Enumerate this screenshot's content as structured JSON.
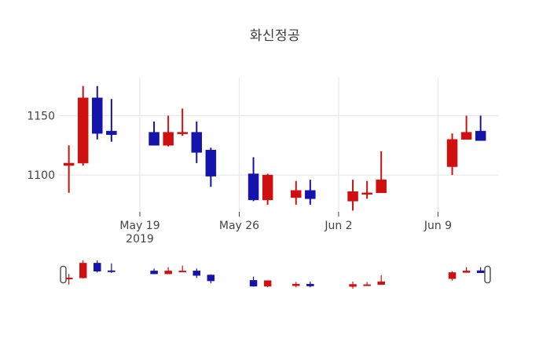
{
  "chart_data": {
    "type": "candlestick",
    "title": "화신정공",
    "xlabel": "",
    "ylabel": "",
    "grid": true,
    "legend": "none",
    "increasing_color": "#d01010",
    "decreasing_color": "#1414ad",
    "grid_color": "#e9e9e9",
    "tick_color": "#444444",
    "y_ticks": [
      1150,
      1100
    ],
    "y_range": [
      1069,
      1182
    ],
    "x_tick_labels": [
      {
        "label": "May 19",
        "sub": "2019",
        "date": "2019-05-19"
      },
      {
        "label": "May 26",
        "sub": "",
        "date": "2019-05-26"
      },
      {
        "label": "Jun 2",
        "sub": "",
        "date": "2019-06-02"
      },
      {
        "label": "Jun 9",
        "sub": "",
        "date": "2019-06-09"
      }
    ],
    "series": [
      {
        "date": "2019-05-14",
        "open": 1108,
        "high": 1125,
        "low": 1085,
        "close": 1110
      },
      {
        "date": "2019-05-15",
        "open": 1110,
        "high": 1175,
        "low": 1108,
        "close": 1165
      },
      {
        "date": "2019-05-16",
        "open": 1165,
        "high": 1175,
        "low": 1130,
        "close": 1135
      },
      {
        "date": "2019-05-17",
        "open": 1137,
        "high": 1164,
        "low": 1128,
        "close": 1134
      },
      {
        "date": "2019-05-20",
        "open": 1136,
        "high": 1145,
        "low": 1125,
        "close": 1125
      },
      {
        "date": "2019-05-21",
        "open": 1125,
        "high": 1150,
        "low": 1124,
        "close": 1136
      },
      {
        "date": "2019-05-22",
        "open": 1135,
        "high": 1156,
        "low": 1133,
        "close": 1136
      },
      {
        "date": "2019-05-23",
        "open": 1136,
        "high": 1145,
        "low": 1110,
        "close": 1119
      },
      {
        "date": "2019-05-24",
        "open": 1121,
        "high": 1123,
        "low": 1090,
        "close": 1099
      },
      {
        "date": "2019-05-27",
        "open": 1101,
        "high": 1115,
        "low": 1078,
        "close": 1079
      },
      {
        "date": "2019-05-28",
        "open": 1079,
        "high": 1101,
        "low": 1075,
        "close": 1100
      },
      {
        "date": "2019-05-30",
        "open": 1081,
        "high": 1095,
        "low": 1075,
        "close": 1087
      },
      {
        "date": "2019-05-31",
        "open": 1087,
        "high": 1096,
        "low": 1075,
        "close": 1080
      },
      {
        "date": "2019-06-03",
        "open": 1078,
        "high": 1096,
        "low": 1070,
        "close": 1086
      },
      {
        "date": "2019-06-04",
        "open": 1084,
        "high": 1095,
        "low": 1080,
        "close": 1085
      },
      {
        "date": "2019-06-05",
        "open": 1085,
        "high": 1120,
        "low": 1085,
        "close": 1096
      },
      {
        "date": "2019-06-10",
        "open": 1107,
        "high": 1135,
        "low": 1100,
        "close": 1130
      },
      {
        "date": "2019-06-11",
        "open": 1130,
        "high": 1150,
        "low": 1130,
        "close": 1136
      },
      {
        "date": "2019-06-12",
        "open": 1137,
        "high": 1150,
        "low": 1129,
        "close": 1129
      }
    ],
    "rangeslider": {
      "visible": true,
      "y_range": [
        1070,
        1175
      ],
      "handle_fill": "#ffffff",
      "handle_border": "#555555"
    }
  }
}
